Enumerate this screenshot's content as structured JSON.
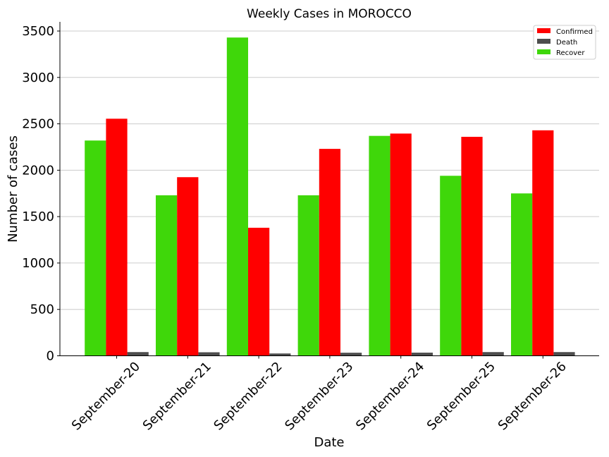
{
  "chart_data": {
    "type": "bar",
    "title": "Weekly Cases in MOROCCO",
    "xlabel": "Date",
    "ylabel": "Number of cases",
    "categories": [
      "September-20",
      "September-21",
      "September-22",
      "September-23",
      "September-24",
      "September-25",
      "September-26"
    ],
    "series": [
      {
        "name": "Recover",
        "color": "#3fd70a",
        "values": [
          2320,
          1730,
          3430,
          1730,
          2370,
          1940,
          1750
        ]
      },
      {
        "name": "Confirmed",
        "color": "#ff0000",
        "values": [
          2555,
          1925,
          1380,
          2230,
          2395,
          2360,
          2430
        ]
      },
      {
        "name": "Death",
        "color": "#4d4d4d",
        "values": [
          40,
          38,
          25,
          33,
          34,
          40,
          40
        ]
      }
    ],
    "legend_order": [
      "Confirmed",
      "Death",
      "Recover"
    ],
    "ylim": [
      0,
      3600
    ],
    "yticks": [
      0,
      500,
      1000,
      1500,
      2000,
      2500,
      3000,
      3500
    ],
    "grid": "horizontal",
    "legend_position": "top-right"
  }
}
